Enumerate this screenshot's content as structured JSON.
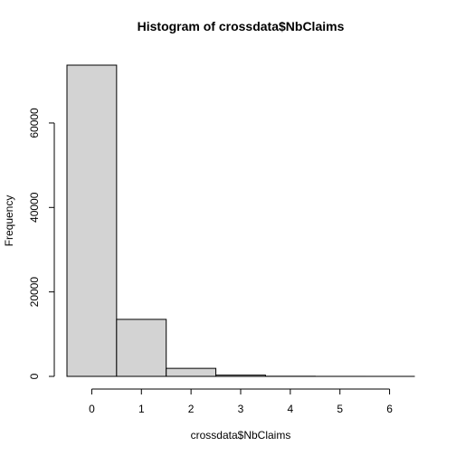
{
  "chart_data": {
    "type": "bar",
    "title": "Histogram of crossdata$NbClaims",
    "xlabel": "crossdata$NbClaims",
    "ylabel": "Frequency",
    "bins": [
      {
        "from": -0.5,
        "to": 0.5,
        "count": 73700
      },
      {
        "from": 0.5,
        "to": 1.5,
        "count": 13500
      },
      {
        "from": 1.5,
        "to": 2.5,
        "count": 1900
      },
      {
        "from": 2.5,
        "to": 3.5,
        "count": 300
      },
      {
        "from": 3.5,
        "to": 4.5,
        "count": 30
      },
      {
        "from": 4.5,
        "to": 5.5,
        "count": 5
      },
      {
        "from": 5.5,
        "to": 6.5,
        "count": 2
      }
    ],
    "xticks": [
      0,
      1,
      2,
      3,
      4,
      5,
      6
    ],
    "yticks": [
      0,
      20000,
      40000,
      60000
    ],
    "xlim": [
      -0.5,
      6.5
    ],
    "ylim": [
      0,
      73700
    ],
    "grid": false,
    "colors": {
      "bar_fill": "#d3d3d3",
      "bar_stroke": "#000000"
    }
  }
}
